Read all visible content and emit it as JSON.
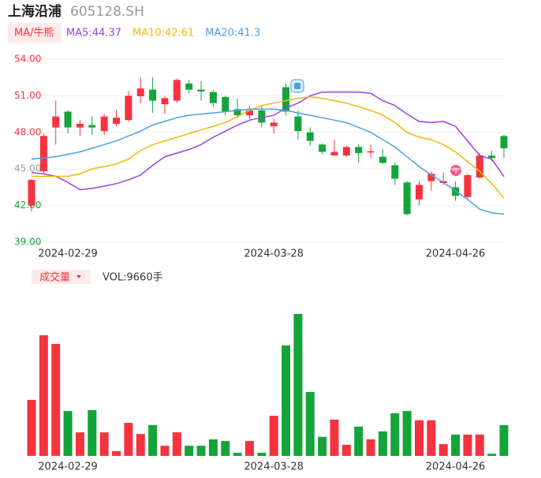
{
  "chart_data": {
    "type": "candlestick",
    "title": "上海沿浦",
    "subtitle": "605128.SH",
    "legend_title": "MA/牛熊",
    "categories": [
      null,
      null,
      null,
      "2024-02-29",
      null,
      null,
      null,
      null,
      null,
      null,
      null,
      null,
      null,
      null,
      null,
      null,
      null,
      null,
      null,
      null,
      "2024-03-28",
      null,
      null,
      null,
      null,
      null,
      null,
      null,
      null,
      null,
      null,
      null,
      null,
      null,
      null,
      "2024-04-26",
      null,
      null,
      null,
      null
    ],
    "open": [
      42.0,
      44.8,
      48.4,
      49.7,
      48.4,
      48.6,
      48.1,
      48.7,
      49.0,
      50.96,
      51.5,
      50.3,
      50.6,
      52.0,
      51.5,
      51.3,
      50.9,
      49.9,
      49.4,
      49.8,
      48.5,
      51.7,
      49.3,
      48.0,
      47.0,
      46.1,
      46.1,
      46.8,
      46.35,
      46.0,
      45.3,
      43.9,
      42.5,
      44.0,
      43.85,
      43.5,
      42.7,
      44.3,
      46.1,
      47.7
    ],
    "close": [
      44.1,
      47.7,
      49.3,
      48.4,
      48.7,
      48.4,
      49.3,
      49.2,
      51.0,
      51.6,
      50.6,
      50.8,
      52.3,
      51.5,
      51.35,
      50.4,
      49.7,
      49.4,
      49.8,
      48.8,
      48.8,
      49.7,
      48.1,
      47.3,
      46.4,
      46.4,
      46.8,
      46.3,
      46.45,
      45.5,
      44.2,
      41.3,
      43.7,
      44.6,
      44.0,
      42.8,
      44.5,
      46.1,
      45.9,
      46.7
    ],
    "high": [
      44.2,
      47.9,
      50.6,
      49.8,
      49.0,
      49.3,
      49.5,
      49.8,
      51.4,
      52.5,
      52.5,
      51.0,
      52.4,
      52.3,
      52.2,
      51.5,
      51.0,
      50.8,
      50.2,
      50.2,
      49.1,
      52.0,
      49.8,
      48.4,
      47.1,
      47.4,
      46.9,
      47.0,
      47.0,
      46.6,
      45.5,
      44.0,
      44.0,
      44.8,
      44.7,
      44.0,
      44.6,
      46.3,
      46.5,
      47.8
    ],
    "low": [
      41.5,
      44.6,
      47.0,
      47.9,
      47.7,
      47.8,
      47.8,
      48.5,
      48.9,
      50.4,
      49.6,
      49.5,
      50.4,
      51.2,
      50.6,
      50.1,
      49.4,
      49.2,
      49.1,
      48.4,
      47.9,
      49.4,
      47.4,
      46.9,
      46.2,
      46.1,
      46.0,
      45.5,
      45.9,
      45.4,
      43.7,
      41.2,
      42.0,
      43.2,
      43.7,
      42.4,
      42.6,
      44.2,
      45.6,
      45.9
    ],
    "up_color": "#f5333f",
    "down_color": "#13a43a",
    "series": [
      {
        "name": "MA5",
        "legend": "MA5:44.37",
        "color": "#9b40e0",
        "values": [
          44.7,
          44.6,
          44.4,
          43.9,
          43.3,
          43.4,
          43.6,
          43.8,
          44.1,
          44.5,
          45.3,
          46.0,
          46.3,
          46.6,
          47.0,
          47.6,
          48.1,
          48.6,
          49.0,
          49.2,
          49.4,
          50.0,
          50.4,
          51.0,
          51.3,
          51.3,
          51.3,
          51.3,
          51.2,
          50.6,
          50.2,
          49.5,
          48.9,
          48.8,
          48.9,
          48.5,
          47.3,
          46.1,
          45.8,
          44.37
        ]
      },
      {
        "name": "MA10",
        "legend": "MA10:42.61",
        "color": "#f2b705",
        "values": [
          44.4,
          44.4,
          44.4,
          44.4,
          44.6,
          45.0,
          45.2,
          45.4,
          45.8,
          46.5,
          47.0,
          47.3,
          47.6,
          47.9,
          48.2,
          48.5,
          48.8,
          49.3,
          49.8,
          50.2,
          50.4,
          50.6,
          50.8,
          50.9,
          50.8,
          50.6,
          50.4,
          50.1,
          49.8,
          49.4,
          48.8,
          48.0,
          47.6,
          47.4,
          47.0,
          46.4,
          45.6,
          44.8,
          43.8,
          42.61
        ]
      },
      {
        "name": "MA20",
        "legend": "MA20:41.3",
        "color": "#4a9fe8",
        "values": [
          45.8,
          45.9,
          46.0,
          46.2,
          46.4,
          46.7,
          47.0,
          47.3,
          47.7,
          48.1,
          48.6,
          48.9,
          49.2,
          49.4,
          49.5,
          49.6,
          49.7,
          49.8,
          49.9,
          49.9,
          49.9,
          49.8,
          49.6,
          49.4,
          49.2,
          49.0,
          48.8,
          48.4,
          48.0,
          47.4,
          46.8,
          46.0,
          45.2,
          44.5,
          43.9,
          43.2,
          42.5,
          41.7,
          41.4,
          41.3
        ]
      }
    ],
    "ylim": [
      39,
      54
    ],
    "yticks": [
      {
        "value": 54,
        "label": "54.00"
      },
      {
        "value": 51,
        "label": "51.00"
      },
      {
        "value": 48,
        "label": "48.00"
      },
      {
        "value": 45,
        "label": "45.00"
      },
      {
        "value": 42,
        "label": "42.00"
      },
      {
        "value": 39,
        "label": "39.00"
      }
    ],
    "ytick_colors": [
      "#f5333f",
      "#f5333f",
      "#f5333f",
      "#999999",
      "#13a43a",
      "#13a43a"
    ],
    "grid": true,
    "annotation": "牛",
    "volume_button": "成交量",
    "volume_label": "VOL:9660手",
    "volume": [
      17600,
      37900,
      35200,
      14100,
      7400,
      14400,
      7400,
      1500,
      10400,
      6900,
      9700,
      3200,
      7400,
      3200,
      3200,
      5200,
      4700,
      1000,
      4700,
      1000,
      12600,
      34700,
      44600,
      20100,
      6000,
      11400,
      3500,
      9200,
      5200,
      7700,
      13400,
      14100,
      11200,
      11200,
      3700,
      6700,
      6700,
      6700,
      700,
      9660
    ]
  }
}
